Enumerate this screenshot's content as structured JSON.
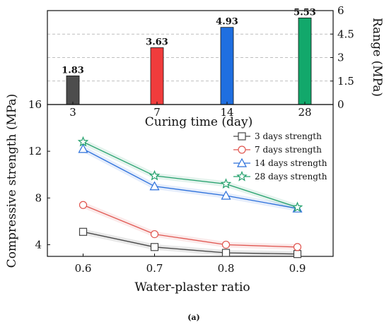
{
  "chart_data": [
    {
      "type": "bar",
      "xlabel": "Curing time (day)",
      "ylabel": "Range (MPa)",
      "ylim": [
        0,
        6
      ],
      "yticks": [
        0,
        1.5,
        3,
        4.5,
        6
      ],
      "grid": "horizontal dashed",
      "categories": [
        "3",
        "7",
        "14",
        "28"
      ],
      "values": [
        1.83,
        3.63,
        4.93,
        5.53
      ],
      "value_labels": [
        "1.83",
        "3.63",
        "4.93",
        "5.53"
      ],
      "colors": [
        "#4d4d4d",
        "#f03c3c",
        "#1f6fe0",
        "#12a86b"
      ]
    },
    {
      "type": "line",
      "xlabel": "Water-plaster ratio",
      "ylabel": "Compressive strength (MPa)",
      "x": [
        0.6,
        0.7,
        0.8,
        0.9
      ],
      "xtick_labels": [
        "0.6",
        "0.7",
        "0.8",
        "0.9"
      ],
      "xlim": [
        0.55,
        0.95
      ],
      "ylim": [
        3,
        16
      ],
      "yticks": [
        4,
        8,
        12,
        16
      ],
      "legend_position": "top-right",
      "series": [
        {
          "name": "3 days strength",
          "values": [
            5.1,
            3.8,
            3.3,
            3.2
          ],
          "color": "#444444",
          "marker": "square"
        },
        {
          "name": "7 days strength",
          "values": [
            7.4,
            4.9,
            4.0,
            3.8
          ],
          "color": "#e0554f",
          "marker": "circle"
        },
        {
          "name": "14 days strength",
          "values": [
            12.2,
            9.0,
            8.2,
            7.1
          ],
          "color": "#2a6fdb",
          "marker": "triangle"
        },
        {
          "name": "28 days strength",
          "values": [
            12.8,
            9.9,
            9.2,
            7.2
          ],
          "color": "#22a06b",
          "marker": "star"
        }
      ]
    }
  ],
  "caption": "(a)"
}
